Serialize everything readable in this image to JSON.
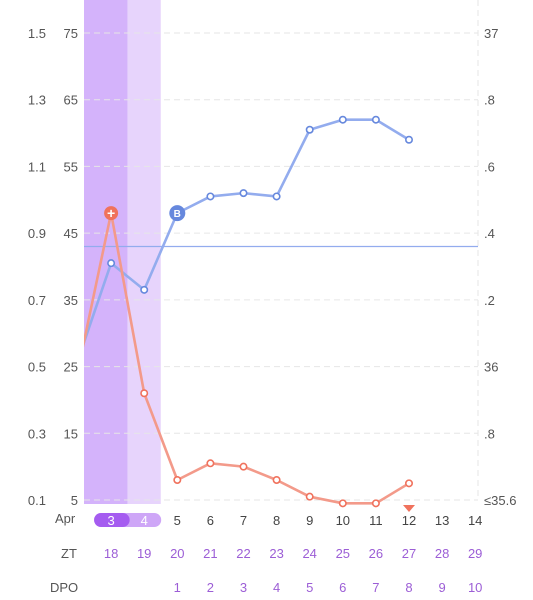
{
  "colors": {
    "temperature_line": "#93acee",
    "temperature_marker": "#6688dd",
    "hormone_line": "#f39a8a",
    "hormone_marker": "#f0725d",
    "period_dark": "#d4b3fb",
    "period_light": "#e7d4fc",
    "period_badge": "#a55cf0",
    "purple_text": "#9c5ed6",
    "grid": "#e6e6e6"
  },
  "chart_data": {
    "type": "line",
    "axes": {
      "left_outer": {
        "ticks": [
          "1.5",
          "1.3",
          "1.1",
          "0.9",
          "0.7",
          "0.5",
          "0.3",
          "0.1"
        ],
        "range": [
          0.1,
          1.5
        ]
      },
      "left_inner": {
        "ticks": [
          "75",
          "65",
          "55",
          "45",
          "35",
          "25",
          "15",
          "5"
        ],
        "range": [
          5,
          75
        ]
      },
      "right": {
        "ticks": [
          "37",
          ".8",
          ".6",
          ".4",
          ".2",
          "36",
          ".8",
          "≤35.6"
        ],
        "range": [
          35.6,
          37.0
        ]
      }
    },
    "days": [
      "2",
      "3",
      "4",
      "5",
      "6",
      "7",
      "8",
      "9",
      "10",
      "11",
      "12",
      "13",
      "14"
    ],
    "visible_day_labels": [
      "3",
      "4",
      "5",
      "6",
      "7",
      "8",
      "9",
      "10",
      "11",
      "12",
      "13",
      "14"
    ],
    "month_label": "Apr",
    "period_days": [
      "3",
      "4"
    ],
    "zt": [
      "18",
      "19",
      "20",
      "21",
      "22",
      "23",
      "24",
      "25",
      "26",
      "27",
      "28",
      "29"
    ],
    "dpo": [
      "",
      "",
      "1",
      "2",
      "3",
      "4",
      "5",
      "6",
      "7",
      "8",
      "9",
      "10"
    ],
    "row_labels": {
      "zt": "ZT",
      "dpo": "DPO"
    },
    "series": [
      {
        "x": [
          "2",
          "3",
          "4",
          "5",
          "6",
          "7",
          "8",
          "9",
          "10",
          "11",
          "12"
        ],
        "values": [
          36.02,
          36.31,
          36.23,
          36.46,
          36.51,
          36.52,
          36.51,
          36.71,
          36.74,
          36.74,
          36.68
        ],
        "axis": "right"
      },
      {
        "x": [
          "2",
          "3",
          "4",
          "5",
          "6",
          "7",
          "8",
          "9",
          "10",
          "11",
          "12"
        ],
        "values": [
          0.49,
          0.96,
          0.42,
          0.16,
          0.21,
          0.2,
          0.16,
          0.11,
          0.09,
          0.09,
          0.15
        ],
        "axis": "left_outer"
      }
    ],
    "coverline": {
      "value": 36.36,
      "axis": "right"
    },
    "markers": {
      "peak": "+",
      "baseline": "B"
    },
    "marker_points": {
      "peak": {
        "series": 1,
        "x": "3"
      },
      "baseline": {
        "series": 0,
        "x": "5"
      }
    },
    "current_day": "12",
    "grid": true
  }
}
